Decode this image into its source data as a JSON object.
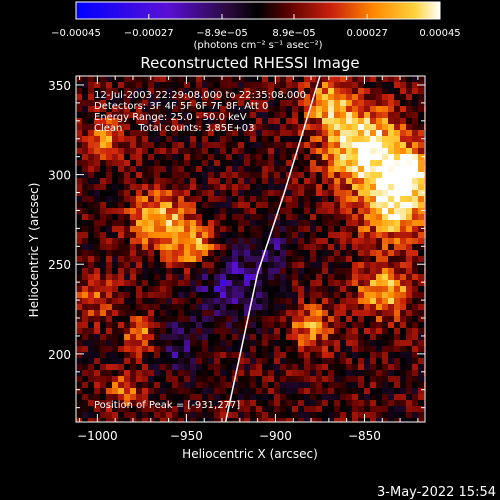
{
  "chart_data": {
    "type": "heatmap",
    "title": "Reconstructed RHESSI Image",
    "xlabel": "Heliocentric X (arcsec)",
    "ylabel": "Heliocentric Y (arcsec)",
    "xlim": [
      -1012,
      -816
    ],
    "ylim": [
      162,
      355
    ],
    "x_ticks": [
      -1000,
      -950,
      -900,
      -850
    ],
    "x_tick_labels": [
      "−1000",
      "−950",
      "−900",
      "−850"
    ],
    "y_ticks": [
      200,
      250,
      300,
      350
    ],
    "y_tick_labels": [
      "200",
      "250",
      "300",
      "350"
    ],
    "colorbar": {
      "range": [
        -0.00045,
        0.00045
      ],
      "ticks": [
        -0.00045,
        -0.00027,
        -8.9e-05,
        8.9e-05,
        0.00027,
        0.00045
      ],
      "tick_labels": [
        "−0.00045",
        "−0.00027",
        "−8.9e−05",
        "8.9e−05",
        "0.00027",
        "0.00045"
      ],
      "unit_label": "(photons cm⁻² s⁻¹ asec⁻²)",
      "colors": [
        "#0000ff",
        "#5a10d6",
        "#2a0a3a",
        "#000000",
        "#5a0000",
        "#c8200a",
        "#ff8a00",
        "#ffd23c",
        "#ffffff"
      ]
    },
    "annotations": [
      "12-Jul-2003 22:29:08.000 to 22:35:08.000",
      "Detectors: 3F 4F 5F 6F 7F 8F, Att 0",
      "Energy Range: 25.0 - 50.0 keV",
      "Clean     Total counts: 3.85E+03"
    ],
    "peak_label": "Position of Peak = [-931,277]",
    "limb_line": [
      [
        -928,
        162
      ],
      [
        -910,
        245
      ],
      [
        -895,
        290
      ],
      [
        -875,
        355
      ]
    ],
    "grid": false,
    "legend": "none"
  },
  "footer": {
    "date": "3-May-2022 15:54"
  }
}
